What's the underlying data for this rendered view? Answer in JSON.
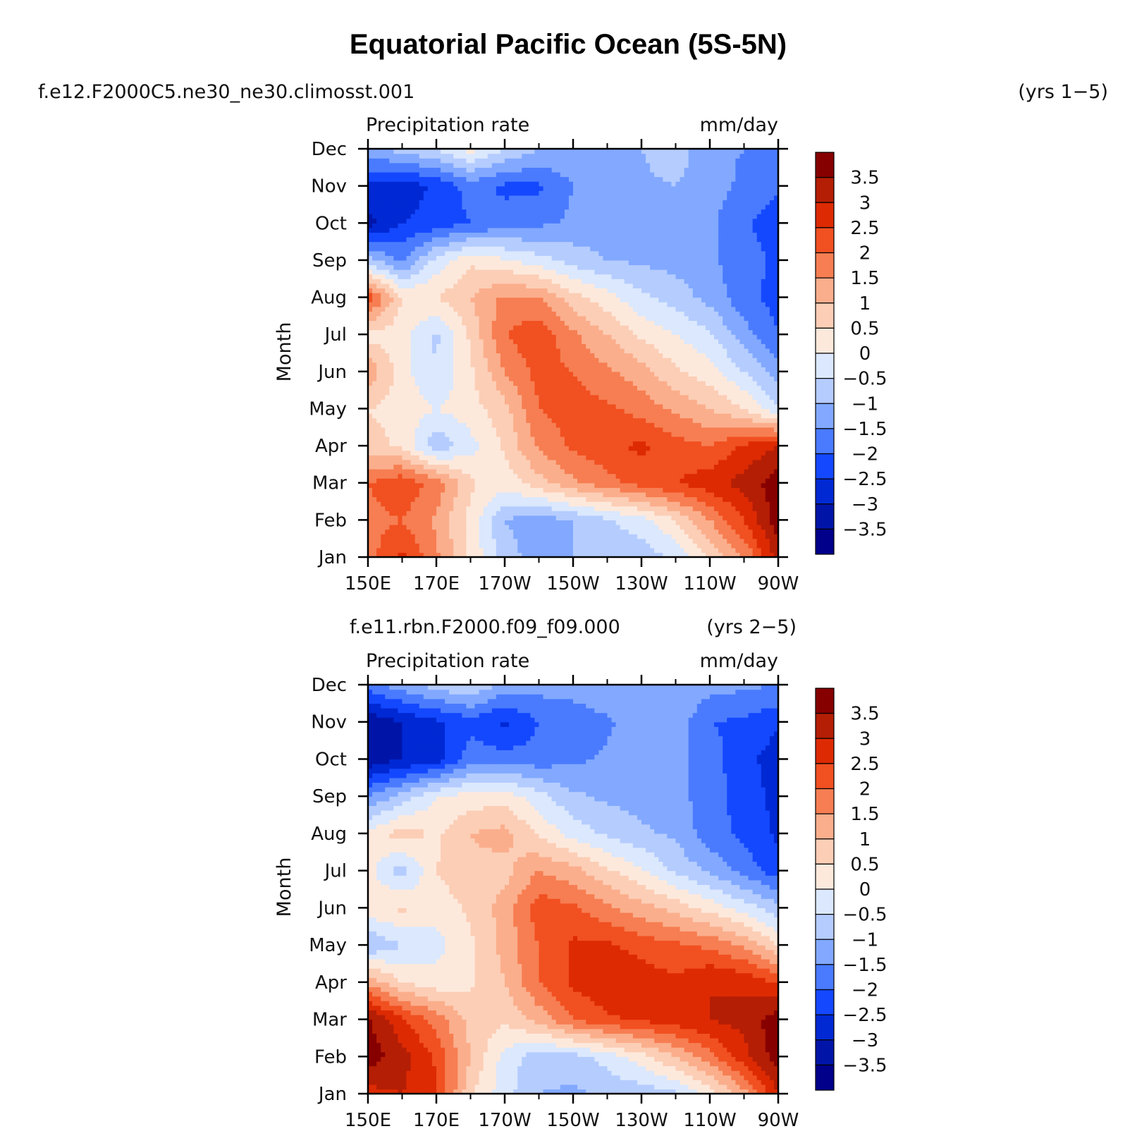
{
  "page": {
    "title": "Equatorial Pacific Ocean (5S-5N)"
  },
  "chart_data": [
    {
      "type": "heatmap",
      "run_label": "f.e12.F2000C5.ne30_ne30.climosst.001",
      "years_label": "(yrs 1−5)",
      "variable": "Precipitation rate",
      "units": "mm/day",
      "ylabel": "Month",
      "x_ticks": [
        "150E",
        "170E",
        "170W",
        "150W",
        "130W",
        "110W",
        "90W"
      ],
      "y_ticks": [
        "Jan",
        "Feb",
        "Mar",
        "Apr",
        "May",
        "Jun",
        "Jul",
        "Aug",
        "Sep",
        "Oct",
        "Nov",
        "Dec"
      ],
      "xlim": [
        150,
        270
      ],
      "colorbar_labels": [
        "3.5",
        "3",
        "2.5",
        "2",
        "1.5",
        "1",
        "0.5",
        "0",
        "−0.5",
        "−1",
        "−1.5",
        "−2",
        "−2.5",
        "−3",
        "−3.5"
      ],
      "levels": [
        -3.5,
        -3,
        -2.5,
        -2,
        -1.5,
        -1,
        -0.5,
        0,
        0.5,
        1,
        1.5,
        2,
        2.5,
        3,
        3.5
      ],
      "lon": [
        150,
        160,
        170,
        180,
        190,
        200,
        210,
        220,
        230,
        240,
        250,
        260,
        270
      ],
      "z": [
        [
          1.8,
          2.6,
          1.6,
          0.4,
          -0.8,
          -1.2,
          -1.0,
          -0.8,
          -0.8,
          -0.4,
          0.5,
          1.5,
          3.2
        ],
        [
          1.8,
          2.0,
          1.4,
          0.3,
          -1.0,
          -1.3,
          -1.0,
          -0.6,
          -0.2,
          0.5,
          1.5,
          2.5,
          3.8
        ],
        [
          2.0,
          2.4,
          1.8,
          0.6,
          0.2,
          0.8,
          1.4,
          1.8,
          2.2,
          2.5,
          2.8,
          3.2,
          3.8
        ],
        [
          0.7,
          0.4,
          -0.9,
          -0.2,
          0.6,
          1.6,
          2.1,
          2.4,
          2.6,
          2.2,
          2.0,
          2.6,
          3.0
        ],
        [
          0.5,
          0.3,
          0.0,
          0.3,
          0.8,
          2.0,
          2.2,
          2.1,
          1.8,
          1.4,
          1.0,
          0.5,
          -0.5
        ],
        [
          1.4,
          0.2,
          -0.5,
          0.4,
          1.5,
          2.2,
          2.0,
          1.6,
          1.2,
          0.6,
          0.2,
          -0.5,
          -1.3
        ],
        [
          0.3,
          0.2,
          -0.6,
          0.6,
          2.0,
          2.4,
          1.6,
          1.0,
          0.4,
          0.0,
          -0.4,
          -1.3,
          -2.0
        ],
        [
          2.4,
          0.5,
          0.5,
          1.0,
          1.6,
          1.5,
          0.7,
          0.2,
          -0.4,
          -0.7,
          -1.2,
          -1.8,
          -2.2
        ],
        [
          -0.8,
          -1.6,
          -0.3,
          0.4,
          0.1,
          -0.3,
          -0.7,
          -1.0,
          -1.1,
          -1.2,
          -1.4,
          -1.8,
          -2.1
        ],
        [
          -3.2,
          -2.5,
          -2.3,
          -2.0,
          -1.8,
          -1.6,
          -1.4,
          -1.3,
          -1.2,
          -1.3,
          -1.4,
          -1.9,
          -2.3
        ],
        [
          -2.6,
          -2.8,
          -2.4,
          -1.8,
          -2.1,
          -2.1,
          -1.5,
          -1.3,
          -1.1,
          -1.0,
          -1.3,
          -1.6,
          -1.9
        ],
        [
          -1.2,
          -0.8,
          -0.5,
          0.2,
          -0.5,
          -1.0,
          -1.1,
          -1.1,
          -1.0,
          -0.7,
          -1.4,
          -1.5,
          -1.5
        ]
      ]
    },
    {
      "type": "heatmap",
      "run_label": "f.e11.rbn.F2000.f09_f09.000",
      "years_label": "(yrs 2−5)",
      "variable": "Precipitation rate",
      "units": "mm/day",
      "ylabel": "Month",
      "x_ticks": [
        "150E",
        "170E",
        "170W",
        "150W",
        "130W",
        "110W",
        "90W"
      ],
      "y_ticks": [
        "Jan",
        "Feb",
        "Mar",
        "Apr",
        "May",
        "Jun",
        "Jul",
        "Aug",
        "Sep",
        "Oct",
        "Nov",
        "Dec"
      ],
      "xlim": [
        150,
        270
      ],
      "colorbar_labels": [
        "3.5",
        "3",
        "2.5",
        "2",
        "1.5",
        "1",
        "0.5",
        "0",
        "−0.5",
        "−1",
        "−1.5",
        "−2",
        "−2.5",
        "−3",
        "−3.5"
      ],
      "levels": [
        -3.5,
        -3,
        -2.5,
        -2,
        -1.5,
        -1,
        -0.5,
        0,
        0.5,
        1,
        1.5,
        2,
        2.5,
        3,
        3.5
      ],
      "lon": [
        150,
        160,
        170,
        180,
        190,
        200,
        210,
        220,
        230,
        240,
        250,
        260,
        270
      ],
      "z": [
        [
          2.8,
          3.0,
          2.6,
          0.6,
          -0.3,
          -1.0,
          -1.1,
          -0.9,
          -0.8,
          -0.6,
          0.2,
          1.3,
          3.0
        ],
        [
          3.8,
          3.2,
          2.4,
          1.0,
          -0.2,
          -0.8,
          -0.7,
          -0.3,
          0.3,
          1.0,
          1.8,
          2.8,
          3.8
        ],
        [
          3.6,
          2.6,
          1.8,
          0.8,
          0.6,
          1.2,
          2.0,
          2.4,
          2.6,
          2.8,
          3.0,
          3.2,
          3.8
        ],
        [
          1.4,
          0.5,
          0.2,
          0.4,
          1.0,
          2.0,
          2.6,
          2.9,
          2.8,
          2.6,
          3.0,
          2.9,
          2.4
        ],
        [
          -1.0,
          -0.5,
          -0.2,
          0.4,
          1.2,
          2.0,
          2.6,
          2.6,
          2.3,
          2.1,
          1.9,
          1.4,
          0.5
        ],
        [
          0.3,
          0.6,
          0.2,
          0.6,
          1.2,
          2.3,
          2.1,
          1.6,
          1.2,
          0.8,
          0.3,
          -0.2,
          -0.8
        ],
        [
          0.2,
          -0.8,
          0.5,
          0.9,
          0.8,
          1.5,
          1.2,
          0.6,
          0.1,
          -0.6,
          -1.1,
          -1.7,
          -2.3
        ],
        [
          0.1,
          0.8,
          0.4,
          1.0,
          1.2,
          0.4,
          -0.2,
          -0.6,
          -0.9,
          -1.1,
          -1.8,
          -2.1,
          -2.6
        ],
        [
          -1.5,
          -0.8,
          0.0,
          0.2,
          0.3,
          -0.3,
          -0.9,
          -1.1,
          -1.2,
          -1.3,
          -1.8,
          -2.2,
          -2.7
        ],
        [
          -3.4,
          -3.0,
          -2.8,
          -1.7,
          -1.8,
          -1.8,
          -1.6,
          -1.4,
          -1.3,
          -1.3,
          -1.8,
          -2.3,
          -2.8
        ],
        [
          -3.4,
          -3.0,
          -2.6,
          -2.2,
          -2.6,
          -2.0,
          -1.9,
          -1.6,
          -1.2,
          -1.2,
          -2.0,
          -2.1,
          -2.4
        ],
        [
          -1.8,
          -1.2,
          -0.8,
          -0.5,
          -1.2,
          -1.3,
          -1.2,
          -1.0,
          -1.0,
          -1.0,
          -1.3,
          -1.4,
          -1.5
        ]
      ]
    }
  ],
  "colors": {
    "palette": [
      "#00008b",
      "#0015a8",
      "#0029d4",
      "#1448ff",
      "#4a7bff",
      "#82a9ff",
      "#b5ccff",
      "#dbe8fd",
      "#fde9dc",
      "#fcceb6",
      "#fbae8c",
      "#f67e52",
      "#f15021",
      "#dd2a03",
      "#b41e05",
      "#870000"
    ],
    "frame": "#000000"
  }
}
